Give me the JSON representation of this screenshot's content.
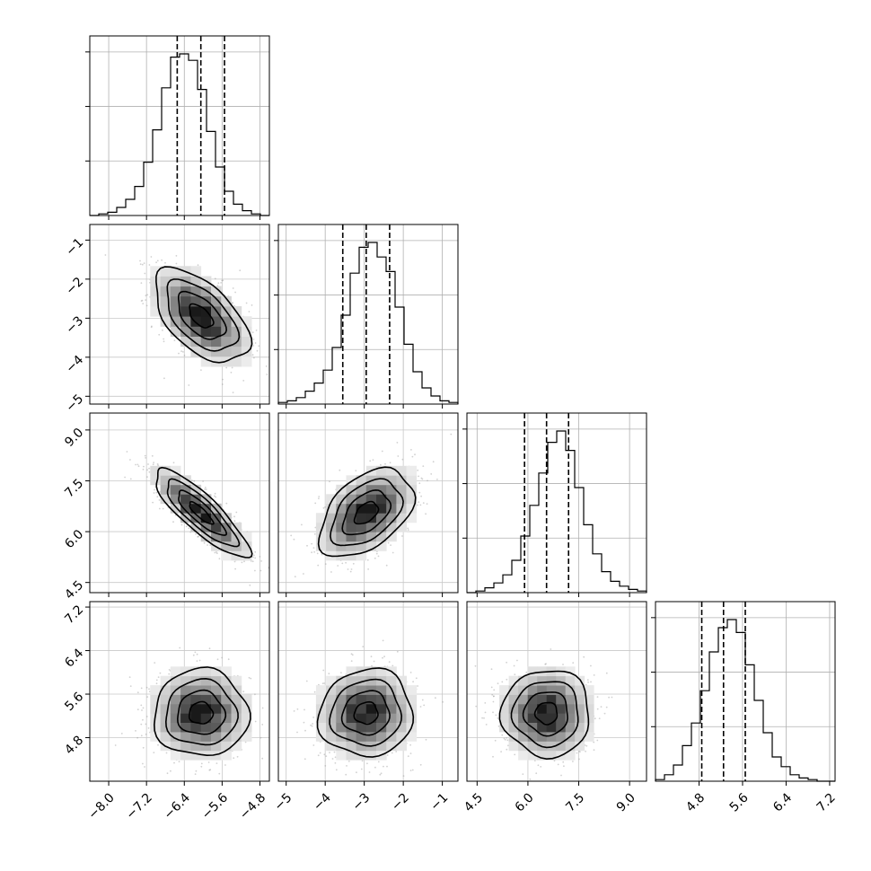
{
  "chart_data": {
    "type": "corner",
    "title": "",
    "parameters": [
      {
        "range": [
          -8.4,
          -4.6
        ],
        "ticks": [
          -8.0,
          -7.2,
          -6.4,
          -5.6,
          -4.8
        ],
        "tick_labels": [
          "−8.0",
          "−7.2",
          "−6.4",
          "−5.6",
          "−4.8"
        ],
        "mean": -6.05,
        "sd": 0.5
      },
      {
        "range": [
          -5.2,
          -0.6
        ],
        "ticks": [
          -5,
          -4,
          -3,
          -2,
          -1
        ],
        "tick_labels": [
          "−5",
          "−4",
          "−3",
          "−2",
          "−1"
        ],
        "mean": -2.95,
        "sd": 0.6
      },
      {
        "range": [
          4.2,
          9.5
        ],
        "ticks": [
          4.5,
          6.0,
          7.5,
          9.0
        ],
        "tick_labels": [
          "4.5",
          "6.0",
          "7.5",
          "9.0"
        ],
        "mean": 6.55,
        "sd": 0.65
      },
      {
        "range": [
          4.0,
          7.3
        ],
        "ticks": [
          4.8,
          5.6,
          6.4,
          7.2
        ],
        "tick_labels": [
          "4.8",
          "5.6",
          "6.4",
          "7.2"
        ],
        "mean": 5.25,
        "sd": 0.4
      }
    ],
    "quantiles": [
      0.16,
      0.5,
      0.84
    ],
    "correlations": {
      "1-0": -0.55,
      "2-0": -0.85,
      "2-1": 0.45,
      "3-0": 0.0,
      "3-1": 0.05,
      "3-2": 0.0
    },
    "histograms": [
      {
        "bins": 20,
        "rel_counts": [
          0.0,
          0.01,
          0.02,
          0.05,
          0.1,
          0.18,
          0.33,
          0.53,
          0.79,
          0.98,
          1.0,
          0.96,
          0.78,
          0.52,
          0.3,
          0.15,
          0.07,
          0.03,
          0.01,
          0.0
        ]
      },
      {
        "bins": 20,
        "rel_counts": [
          0.01,
          0.02,
          0.04,
          0.08,
          0.13,
          0.21,
          0.35,
          0.55,
          0.81,
          0.97,
          1.0,
          0.91,
          0.82,
          0.6,
          0.37,
          0.2,
          0.1,
          0.05,
          0.02,
          0.01
        ]
      },
      {
        "bins": 20,
        "rel_counts": [
          0.0,
          0.01,
          0.03,
          0.06,
          0.11,
          0.2,
          0.35,
          0.54,
          0.74,
          0.93,
          1.0,
          0.88,
          0.65,
          0.42,
          0.24,
          0.13,
          0.07,
          0.04,
          0.02,
          0.01
        ]
      },
      {
        "bins": 20,
        "rel_counts": [
          0.01,
          0.04,
          0.1,
          0.22,
          0.36,
          0.56,
          0.8,
          0.95,
          1.0,
          0.92,
          0.72,
          0.5,
          0.3,
          0.15,
          0.09,
          0.04,
          0.02,
          0.01,
          0.0,
          0.0
        ]
      }
    ],
    "grid": true,
    "samples_shown": 900
  }
}
